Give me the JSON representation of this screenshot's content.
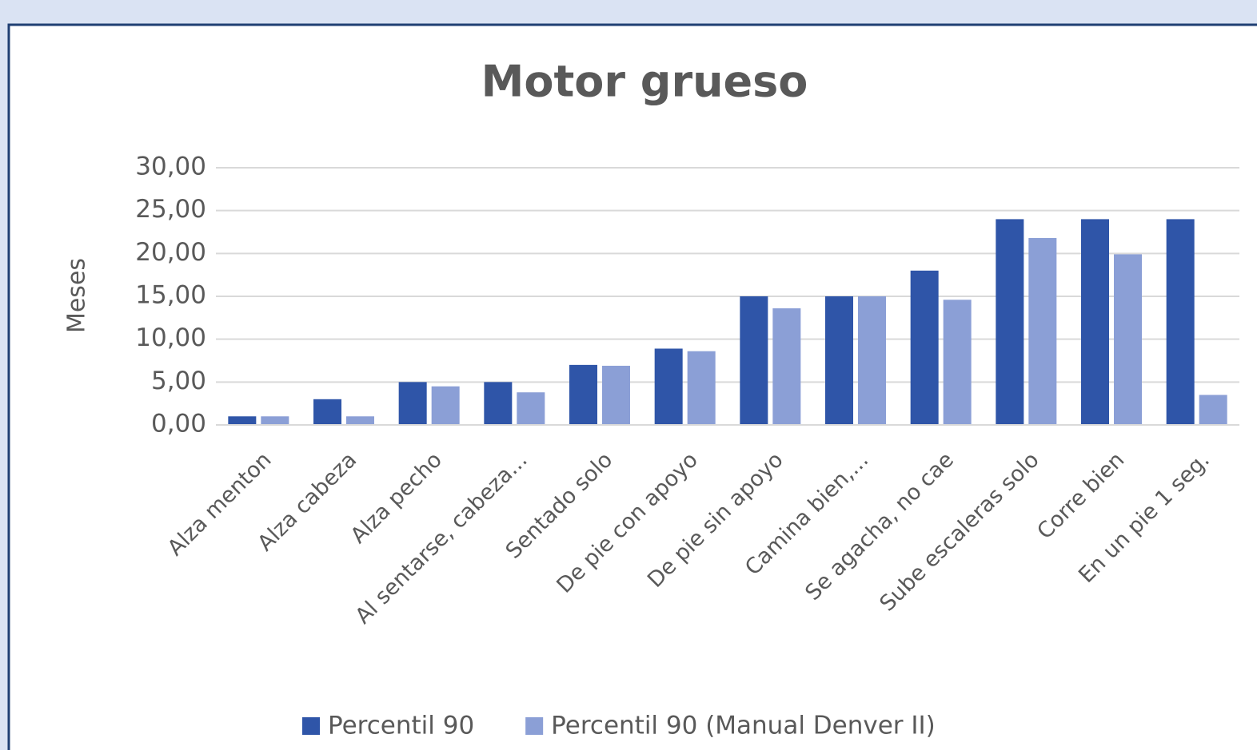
{
  "chart_data": {
    "type": "bar",
    "title": "Motor grueso",
    "y_label": "Meses",
    "categories": [
      "Alza menton",
      "Alza cabeza",
      "Alza  pecho",
      "Al sentarse, cabeza...",
      "Sentado solo",
      "De pie con apoyo",
      "De pie sin apoyo",
      "Camina bien,...",
      "Se agacha, no cae",
      "Sube escaleras solo",
      "Corre bien",
      "En un pie 1 seg."
    ],
    "series": [
      {
        "name": "Percentil 90",
        "color": "#2f55a8",
        "values": [
          1,
          3,
          5,
          5,
          7,
          8.9,
          15,
          15,
          18,
          24,
          24,
          24
        ]
      },
      {
        "name": "Percentil 90 (Manual Denver II)",
        "color": "#8b9fd6",
        "values": [
          1,
          1,
          4.5,
          3.8,
          6.9,
          8.6,
          13.6,
          15,
          14.6,
          21.8,
          19.9,
          3.5
        ]
      }
    ],
    "ylim": [
      0,
      30
    ],
    "yticks": [
      {
        "value": 0,
        "label": "0,00"
      },
      {
        "value": 5,
        "label": "5,00"
      },
      {
        "value": 10,
        "label": "10,00"
      },
      {
        "value": 15,
        "label": "15,00"
      },
      {
        "value": 20,
        "label": "20,00"
      },
      {
        "value": 25,
        "label": "25,00"
      },
      {
        "value": 30,
        "label": "30,00"
      }
    ],
    "grid": true,
    "legend": "bottom"
  }
}
